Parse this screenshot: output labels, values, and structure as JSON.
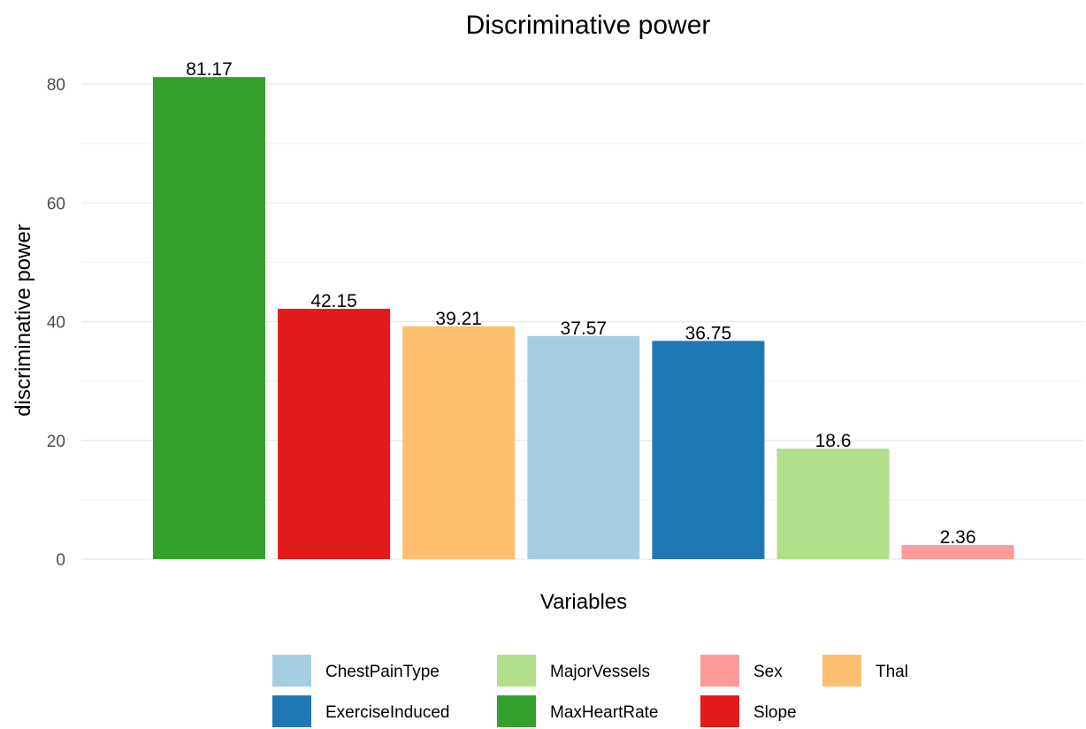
{
  "chart_data": {
    "type": "bar",
    "title": "Discriminative power",
    "xlabel": "Variables",
    "ylabel": "discriminative power",
    "ylim": [
      0,
      85
    ],
    "yticks": [
      0,
      20,
      40,
      60,
      80
    ],
    "grid": true,
    "legend_position": "bottom",
    "categories": [
      "MaxHeartRate",
      "Slope",
      "Thal",
      "ChestPainType",
      "ExerciseInduced",
      "MajorVessels",
      "Sex"
    ],
    "values": [
      81.17,
      42.15,
      39.21,
      37.57,
      36.75,
      18.6,
      2.36
    ],
    "value_labels": [
      "81.17",
      "42.15",
      "39.21",
      "37.57",
      "36.75",
      "18.6",
      "2.36"
    ],
    "colors": {
      "ChestPainType": "#a6cee3",
      "ExerciseInduced": "#1f78b4",
      "MajorVessels": "#b2df8a",
      "MaxHeartRate": "#33a02c",
      "Sex": "#fb9a99",
      "Slope": "#e31a1c",
      "Thal": "#fdbf6f"
    },
    "legend": [
      [
        "ChestPainType",
        "MajorVessels",
        "Sex",
        "Thal"
      ],
      [
        "ExerciseInduced",
        "MaxHeartRate",
        "Slope"
      ]
    ]
  }
}
